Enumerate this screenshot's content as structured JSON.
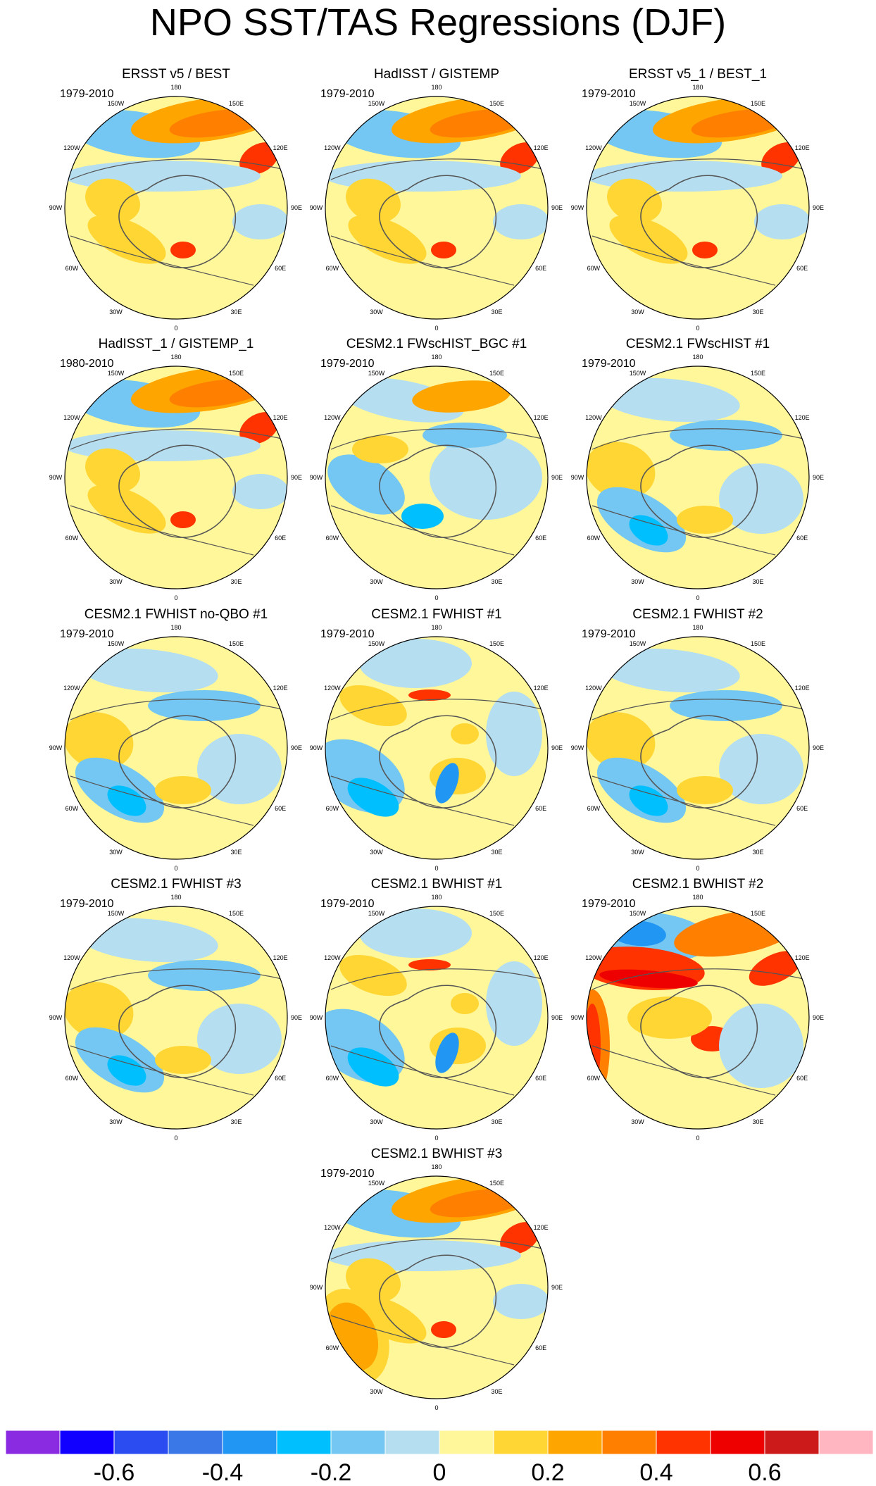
{
  "title": "NPO SST/TAS Regressions (DJF)",
  "chart_data": {
    "type": "heatmap",
    "projection": "north-polar-stereographic",
    "variable": "SST/TAS regression onto NPO index (DJF)",
    "longitude_labels": [
      "180",
      "150E",
      "120E",
      "90E",
      "60E",
      "30E",
      "0",
      "30W",
      "60W",
      "90W",
      "120W",
      "150W"
    ],
    "colorbar": {
      "levels": [
        -0.7,
        -0.6,
        -0.5,
        -0.4,
        -0.3,
        -0.2,
        -0.1,
        0,
        0.1,
        0.2,
        0.3,
        0.4,
        0.5,
        0.6,
        0.7
      ],
      "tick_labels": [
        "-0.6",
        "-0.4",
        "-0.2",
        "0",
        "0.2",
        "0.4",
        "0.6"
      ],
      "tick_values": [
        -0.6,
        -0.4,
        -0.2,
        0,
        0.2,
        0.4,
        0.6
      ],
      "colors": [
        "#8a2be2",
        "#1100ff",
        "#2b4cf0",
        "#3a78e8",
        "#2196f3",
        "#00bfff",
        "#74c7f2",
        "#b5def0",
        "#fff79a",
        "#ffd633",
        "#ffa500",
        "#ff7f00",
        "#ff3300",
        "#ee0000",
        "#cc1a1a",
        "#ffb6c1"
      ]
    },
    "panels": [
      {
        "title": "ERSST v5 / BEST",
        "period": "1979-2010",
        "pattern": "strong-positive"
      },
      {
        "title": "HadISST / GISTEMP",
        "period": "1979-2010",
        "pattern": "strong-positive"
      },
      {
        "title": "ERSST v5_1 / BEST_1",
        "period": "1979-2010",
        "pattern": "strong-positive"
      },
      {
        "title": "HadISST_1 / GISTEMP_1",
        "period": "1980-2010",
        "pattern": "strong-positive"
      },
      {
        "title": "CESM2.1 FWscHIST_BGC #1",
        "period": "1979-2010",
        "pattern": "weak-positive"
      },
      {
        "title": "CESM2.1 FWscHIST #1",
        "period": "1979-2010",
        "pattern": "weak-negative"
      },
      {
        "title": "CESM2.1 FWHIST no-QBO #1",
        "period": "1979-2010",
        "pattern": "weak-negative"
      },
      {
        "title": "CESM2.1 FWHIST #1",
        "period": "1979-2010",
        "pattern": "mixed"
      },
      {
        "title": "CESM2.1 FWHIST #2",
        "period": "1979-2010",
        "pattern": "weak-negative"
      },
      {
        "title": "CESM2.1 FWHIST #3",
        "period": "1979-2010",
        "pattern": "weak-negative"
      },
      {
        "title": "CESM2.1 BWHIST #1",
        "period": "1979-2010",
        "pattern": "mixed"
      },
      {
        "title": "CESM2.1 BWHIST #2",
        "period": "1979-2010",
        "pattern": "very-strong-positive"
      },
      {
        "title": "CESM2.1 BWHIST #3",
        "period": "1979-2010",
        "pattern": "strong-positive"
      }
    ]
  }
}
